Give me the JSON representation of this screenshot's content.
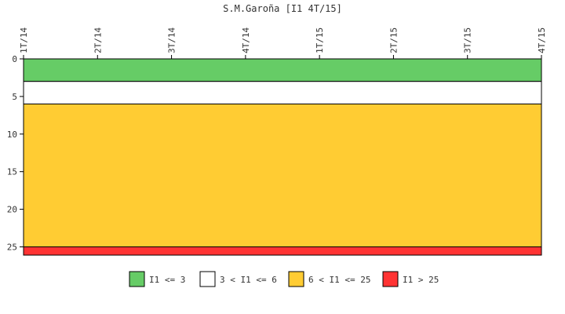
{
  "chart_data": {
    "type": "area",
    "title": "S.M.Garoña [I1 4T/15]",
    "x_ticks": [
      "1T/14",
      "2T/14",
      "3T/14",
      "4T/14",
      "1T/15",
      "2T/15",
      "3T/15",
      "4T/15"
    ],
    "y_ticks": [
      0,
      5,
      10,
      15,
      20,
      25
    ],
    "ylim": [
      0,
      26.1
    ],
    "y_inverted": true,
    "bands": [
      {
        "label": "I1 <= 3",
        "from": 0,
        "to": 3,
        "color": "#66cc66"
      },
      {
        "label": "3 < I1 <= 6",
        "from": 3,
        "to": 6,
        "color": "#ffffff"
      },
      {
        "label": "6 < I1 <= 25",
        "from": 6,
        "to": 25,
        "color": "#ffcc33"
      },
      {
        "label": "I1 > 25",
        "from": 25,
        "to": 26.1,
        "color": "#ff3333"
      }
    ],
    "grid": false,
    "legend_position": "bottom"
  }
}
